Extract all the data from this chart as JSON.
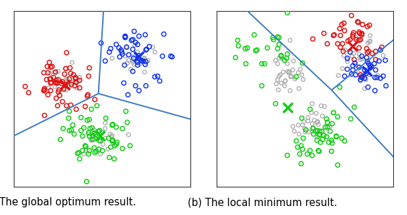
{
  "title_a": "(a) The global optimum result.",
  "title_b": "(b) The local minimum result.",
  "line_color": "#3a7abf",
  "line_width": 1.4,
  "marker_size": 4.5,
  "marker_lw": 1.1,
  "cross_size": 100,
  "cross_lw": 2.5,
  "colors": {
    "red": "#dd1111",
    "blue": "#1133ee",
    "green": "#11cc11",
    "gray": "#aaaaaa"
  },
  "caption_fontsize": 10.5
}
